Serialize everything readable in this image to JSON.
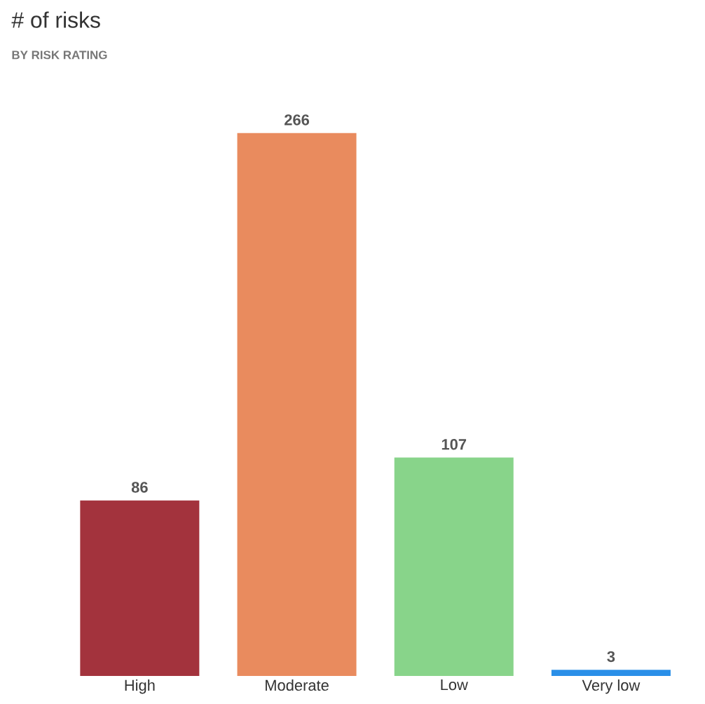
{
  "chart_data": {
    "type": "bar",
    "title": "# of risks",
    "subtitle": "BY RISK RATING",
    "categories": [
      "High",
      "Moderate",
      "Low",
      "Very low"
    ],
    "values": [
      86,
      266,
      107,
      3
    ],
    "colors": [
      "#a3333d",
      "#e98b5e",
      "#88d48a",
      "#2a8fe8"
    ],
    "data_labels": true
  }
}
